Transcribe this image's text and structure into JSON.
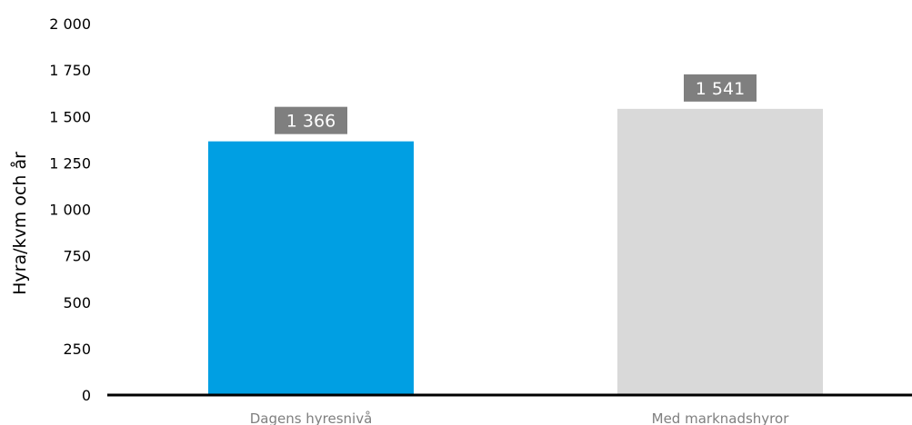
{
  "chart_data": {
    "type": "bar",
    "categories": [
      "Dagens hyresnivå",
      "Med marknadshyror"
    ],
    "values": [
      1366,
      1541
    ],
    "data_labels": [
      "1 366",
      "1 541"
    ],
    "bar_colors": [
      "#009fe3",
      "#d9d9d9"
    ],
    "data_label_bg": "#7f7f7f",
    "ylabel": "Hyra/kvm och år",
    "ylim": [
      0,
      2000
    ],
    "yticks": [
      0,
      250,
      500,
      750,
      1000,
      1250,
      1500,
      1750,
      2000
    ],
    "ytick_labels": [
      "0",
      "250",
      "500",
      "750",
      "1 000",
      "1 250",
      "1 500",
      "1 750",
      "2 000"
    ],
    "grid": false,
    "legend": "none"
  }
}
